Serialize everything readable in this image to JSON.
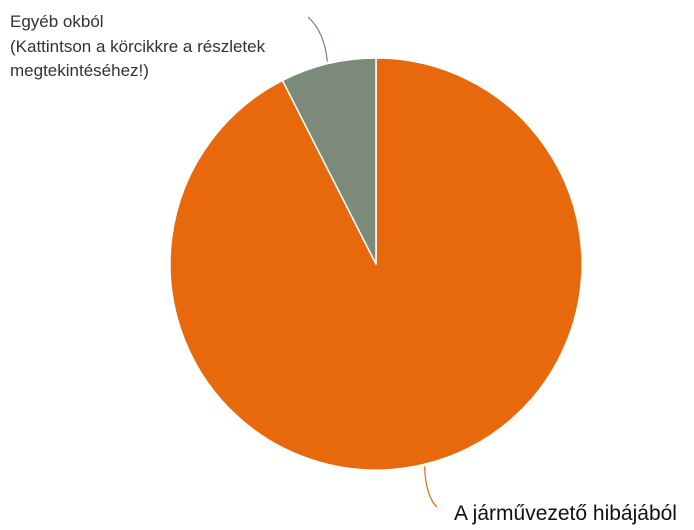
{
  "chart_data": {
    "type": "pie",
    "slices": [
      {
        "label": "A járművezető hibájából",
        "value": 92.5,
        "color": "#e8680c"
      },
      {
        "label_lines": [
          "Egyéb okból",
          "(Kattintson a körcikkre a részletek",
          "megtekintéséhez!)"
        ],
        "value": 7.5,
        "color": "#7b8a7b"
      }
    ],
    "start_angle_deg": 0,
    "direction": "clockwise",
    "slice_border_color": "#ffffff",
    "legend": "none"
  }
}
